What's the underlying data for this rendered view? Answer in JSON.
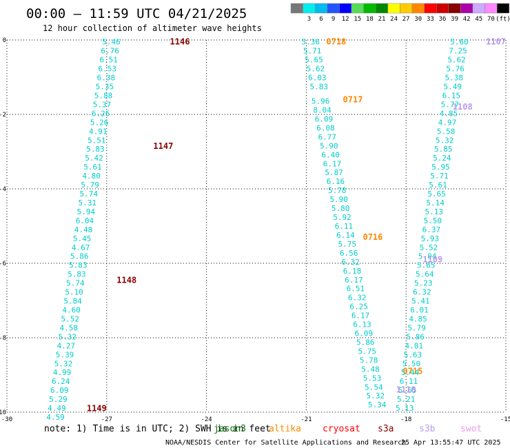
{
  "header": {
    "title": "00:00 – 11:59 UTC 04/21/2025",
    "subtitle": "12 hour collection of altimeter wave heights"
  },
  "colorbar": {
    "unit": "(ft)",
    "bins": [
      {
        "label": "",
        "color": "#777777"
      },
      {
        "label": "3",
        "color": "#00eeee"
      },
      {
        "label": "6",
        "color": "#00bbee"
      },
      {
        "label": "9",
        "color": "#2255ff"
      },
      {
        "label": "12",
        "color": "#0000ff"
      },
      {
        "label": "15",
        "color": "#55dd55"
      },
      {
        "label": "18",
        "color": "#00bb00"
      },
      {
        "label": "21",
        "color": "#008800"
      },
      {
        "label": "24",
        "color": "#ffff00"
      },
      {
        "label": "27",
        "color": "#ffcc00"
      },
      {
        "label": "30",
        "color": "#ff8800"
      },
      {
        "label": "33",
        "color": "#ff0000"
      },
      {
        "label": "36",
        "color": "#cc0000"
      },
      {
        "label": "39",
        "color": "#880000"
      },
      {
        "label": "42",
        "color": "#aa00aa"
      },
      {
        "label": "45",
        "color": "#ccaaff"
      },
      {
        "label": "70",
        "color": "#ff88ff"
      },
      {
        "label": "(ft)",
        "color": "#000000"
      }
    ]
  },
  "legend": {
    "note": "note:  1) Time is in UTC;  2) SWH is in feet",
    "satellites": [
      {
        "name": "jason3",
        "color": "#007700"
      },
      {
        "name": "altika",
        "color": "#ff8800"
      },
      {
        "name": "cryosat",
        "color": "#ff0000"
      },
      {
        "name": "s3a",
        "color": "#880000"
      },
      {
        "name": "s3b",
        "color": "#bb99ee"
      },
      {
        "name": "swot",
        "color": "#ee99ee"
      }
    ]
  },
  "footer": {
    "credit": "NOAA/NESDIS Center for Satellite Applications and Research",
    "generated": "25 Apr 13:55:47 UTC 2025"
  },
  "chart_data": {
    "type": "scatter",
    "xlim": [
      -30,
      -15
    ],
    "ylim": [
      -10,
      0
    ],
    "x_ticks": [
      "-30",
      "-27",
      "-24",
      "-21",
      "-18",
      "-15"
    ],
    "y_ticks": [
      "0",
      "-2",
      "-4",
      "-6",
      "-8",
      "-10"
    ],
    "grid": true,
    "units": "ft",
    "tracks": [
      {
        "satellite": "s3a",
        "color": "#880000",
        "passes": [
          {
            "time": "1146",
            "lon": -24.8,
            "lat": -0.05
          },
          {
            "time": "1147",
            "lon": -25.3,
            "lat": -2.85
          },
          {
            "time": "1148",
            "lon": -26.4,
            "lat": -6.45
          },
          {
            "time": "1149",
            "lon": -27.3,
            "lat": -9.9
          }
        ],
        "points": [
          {
            "lon": -26.86,
            "lat": -0.05,
            "swh": "5.46"
          },
          {
            "lon": -26.9,
            "lat": -0.29,
            "swh": "6.76"
          },
          {
            "lon": -26.94,
            "lat": -0.53,
            "swh": "6.51"
          },
          {
            "lon": -26.98,
            "lat": -0.77,
            "swh": "6.53"
          },
          {
            "lon": -27.02,
            "lat": -1.01,
            "swh": "6.38"
          },
          {
            "lon": -27.06,
            "lat": -1.25,
            "swh": "5.35"
          },
          {
            "lon": -27.1,
            "lat": -1.49,
            "swh": "5.88"
          },
          {
            "lon": -27.14,
            "lat": -1.73,
            "swh": "5.37"
          },
          {
            "lon": -27.18,
            "lat": -1.97,
            "swh": "6.26"
          },
          {
            "lon": -27.22,
            "lat": -2.21,
            "swh": "5.26"
          },
          {
            "lon": -27.26,
            "lat": -2.45,
            "swh": "4.91"
          },
          {
            "lon": -27.3,
            "lat": -2.69,
            "swh": "5.51"
          },
          {
            "lon": -27.34,
            "lat": -2.93,
            "swh": "5.83"
          },
          {
            "lon": -27.38,
            "lat": -3.17,
            "swh": "5.42"
          },
          {
            "lon": -27.42,
            "lat": -3.41,
            "swh": "5.61"
          },
          {
            "lon": -27.46,
            "lat": -3.65,
            "swh": "4.80"
          },
          {
            "lon": -27.5,
            "lat": -3.89,
            "swh": "5.79"
          },
          {
            "lon": -27.54,
            "lat": -4.13,
            "swh": "5.74"
          },
          {
            "lon": -27.58,
            "lat": -4.37,
            "swh": "5.31"
          },
          {
            "lon": -27.62,
            "lat": -4.61,
            "swh": "5.94"
          },
          {
            "lon": -27.66,
            "lat": -4.85,
            "swh": "6.04"
          },
          {
            "lon": -27.7,
            "lat": -5.09,
            "swh": "4.48"
          },
          {
            "lon": -27.74,
            "lat": -5.33,
            "swh": "5.45"
          },
          {
            "lon": -27.78,
            "lat": -5.57,
            "swh": "4.67"
          },
          {
            "lon": -27.82,
            "lat": -5.81,
            "swh": "5.86"
          },
          {
            "lon": -27.86,
            "lat": -6.05,
            "swh": "5.83"
          },
          {
            "lon": -27.9,
            "lat": -6.29,
            "swh": "5.83"
          },
          {
            "lon": -27.94,
            "lat": -6.53,
            "swh": "5.74"
          },
          {
            "lon": -27.98,
            "lat": -6.77,
            "swh": "5.10"
          },
          {
            "lon": -28.02,
            "lat": -7.01,
            "swh": "5.84"
          },
          {
            "lon": -28.06,
            "lat": -7.25,
            "swh": "4.60"
          },
          {
            "lon": -28.1,
            "lat": -7.49,
            "swh": "5.52"
          },
          {
            "lon": -28.14,
            "lat": -7.73,
            "swh": "4.58"
          },
          {
            "lon": -28.18,
            "lat": -7.97,
            "swh": "5.32"
          },
          {
            "lon": -28.22,
            "lat": -8.21,
            "swh": "4.27"
          },
          {
            "lon": -28.26,
            "lat": -8.45,
            "swh": "5.39"
          },
          {
            "lon": -28.3,
            "lat": -8.69,
            "swh": "5.32"
          },
          {
            "lon": -28.34,
            "lat": -8.93,
            "swh": "4.99"
          },
          {
            "lon": -28.38,
            "lat": -9.17,
            "swh": "6.24"
          },
          {
            "lon": -28.42,
            "lat": -9.41,
            "swh": "6.09"
          },
          {
            "lon": -28.46,
            "lat": -9.65,
            "swh": "5.29"
          },
          {
            "lon": -28.5,
            "lat": -9.89,
            "swh": "4.49"
          },
          {
            "lon": -28.54,
            "lat": -10.13,
            "swh": "4.59"
          }
        ]
      },
      {
        "satellite": "altika",
        "color": "#ff8800",
        "passes": [
          {
            "time": "0718",
            "lon": -20.1,
            "lat": -0.05
          },
          {
            "time": "0717",
            "lon": -19.6,
            "lat": -1.6
          },
          {
            "time": "0716",
            "lon": -19.0,
            "lat": -5.3
          },
          {
            "time": "0715",
            "lon": -17.8,
            "lat": -8.9
          }
        ],
        "points": [
          {
            "lon": -20.87,
            "lat": -0.05,
            "swh": "5.36"
          },
          {
            "lon": -20.82,
            "lat": -0.29,
            "swh": "5.71"
          },
          {
            "lon": -20.77,
            "lat": -0.53,
            "swh": "5.65"
          },
          {
            "lon": -20.72,
            "lat": -0.77,
            "swh": "5.62"
          },
          {
            "lon": -20.67,
            "lat": -1.01,
            "swh": "6.03"
          },
          {
            "lon": -20.62,
            "lat": -1.25,
            "swh": "5.83"
          },
          {
            "lon": -20.57,
            "lat": -1.64,
            "swh": "5.96"
          },
          {
            "lon": -20.52,
            "lat": -1.88,
            "swh": "8.04"
          },
          {
            "lon": -20.47,
            "lat": -2.12,
            "swh": "6.09"
          },
          {
            "lon": -20.42,
            "lat": -2.36,
            "swh": "6.08"
          },
          {
            "lon": -20.37,
            "lat": -2.6,
            "swh": "6.77"
          },
          {
            "lon": -20.32,
            "lat": -2.84,
            "swh": "5.90"
          },
          {
            "lon": -20.27,
            "lat": -3.08,
            "swh": "6.40"
          },
          {
            "lon": -20.22,
            "lat": -3.32,
            "swh": "6.17"
          },
          {
            "lon": -20.17,
            "lat": -3.56,
            "swh": "5.87"
          },
          {
            "lon": -20.12,
            "lat": -3.8,
            "swh": "6.16"
          },
          {
            "lon": -20.07,
            "lat": -4.04,
            "swh": "5.78"
          },
          {
            "lon": -20.02,
            "lat": -4.28,
            "swh": "5.90"
          },
          {
            "lon": -19.97,
            "lat": -4.52,
            "swh": "5.80"
          },
          {
            "lon": -19.92,
            "lat": -4.76,
            "swh": "5.92"
          },
          {
            "lon": -19.87,
            "lat": -5.0,
            "swh": "6.11"
          },
          {
            "lon": -19.82,
            "lat": -5.24,
            "swh": "6.14"
          },
          {
            "lon": -19.77,
            "lat": -5.48,
            "swh": "5.75"
          },
          {
            "lon": -19.72,
            "lat": -5.72,
            "swh": "6.56"
          },
          {
            "lon": -19.67,
            "lat": -5.96,
            "swh": "6.32"
          },
          {
            "lon": -19.62,
            "lat": -6.2,
            "swh": "6.18"
          },
          {
            "lon": -19.57,
            "lat": -6.44,
            "swh": "6.17"
          },
          {
            "lon": -19.52,
            "lat": -6.68,
            "swh": "6.51"
          },
          {
            "lon": -19.47,
            "lat": -6.92,
            "swh": "6.32"
          },
          {
            "lon": -19.42,
            "lat": -7.16,
            "swh": "6.25"
          },
          {
            "lon": -19.37,
            "lat": -7.4,
            "swh": "6.17"
          },
          {
            "lon": -19.32,
            "lat": -7.64,
            "swh": "6.13"
          },
          {
            "lon": -19.27,
            "lat": -7.88,
            "swh": "6.09"
          },
          {
            "lon": -19.22,
            "lat": -8.12,
            "swh": "5.86"
          },
          {
            "lon": -19.17,
            "lat": -8.36,
            "swh": "5.75"
          },
          {
            "lon": -19.12,
            "lat": -8.6,
            "swh": "5.78"
          },
          {
            "lon": -19.07,
            "lat": -8.84,
            "swh": "5.48"
          },
          {
            "lon": -19.02,
            "lat": -9.08,
            "swh": "5.53"
          },
          {
            "lon": -18.97,
            "lat": -9.32,
            "swh": "5.54"
          },
          {
            "lon": -18.92,
            "lat": -9.56,
            "swh": "5.32"
          },
          {
            "lon": -18.87,
            "lat": -9.8,
            "swh": "5.34"
          }
        ]
      },
      {
        "satellite": "s3b",
        "color": "#bb99ee",
        "passes": [
          {
            "time": "1107",
            "lon": -15.3,
            "lat": -0.05
          },
          {
            "time": "1108",
            "lon": -16.3,
            "lat": -1.8
          },
          {
            "time": "1109",
            "lon": -17.2,
            "lat": -5.9
          },
          {
            "time": "1110",
            "lon": -18.0,
            "lat": -9.4
          }
        ],
        "points": [
          {
            "lon": -16.4,
            "lat": -0.05,
            "swh": "5.60"
          },
          {
            "lon": -16.44,
            "lat": -0.29,
            "swh": "7.25"
          },
          {
            "lon": -16.48,
            "lat": -0.53,
            "swh": "5.62"
          },
          {
            "lon": -16.52,
            "lat": -0.77,
            "swh": "5.76"
          },
          {
            "lon": -16.56,
            "lat": -1.01,
            "swh": "5.38"
          },
          {
            "lon": -16.6,
            "lat": -1.25,
            "swh": "5.49"
          },
          {
            "lon": -16.64,
            "lat": -1.49,
            "swh": "6.15"
          },
          {
            "lon": -16.68,
            "lat": -1.73,
            "swh": "5.77"
          },
          {
            "lon": -16.72,
            "lat": -1.97,
            "swh": "4.85"
          },
          {
            "lon": -16.76,
            "lat": -2.21,
            "swh": "4.97"
          },
          {
            "lon": -16.8,
            "lat": -2.45,
            "swh": "5.58"
          },
          {
            "lon": -16.84,
            "lat": -2.69,
            "swh": "5.32"
          },
          {
            "lon": -16.88,
            "lat": -2.93,
            "swh": "5.85"
          },
          {
            "lon": -16.92,
            "lat": -3.17,
            "swh": "5.24"
          },
          {
            "lon": -16.96,
            "lat": -3.41,
            "swh": "5.95"
          },
          {
            "lon": -17.0,
            "lat": -3.65,
            "swh": "5.71"
          },
          {
            "lon": -17.04,
            "lat": -3.89,
            "swh": "5.61"
          },
          {
            "lon": -17.08,
            "lat": -4.13,
            "swh": "5.65"
          },
          {
            "lon": -17.12,
            "lat": -4.37,
            "swh": "5.14"
          },
          {
            "lon": -17.16,
            "lat": -4.61,
            "swh": "5.13"
          },
          {
            "lon": -17.2,
            "lat": -4.85,
            "swh": "5.50"
          },
          {
            "lon": -17.24,
            "lat": -5.09,
            "swh": "6.37"
          },
          {
            "lon": -17.28,
            "lat": -5.33,
            "swh": "5.93"
          },
          {
            "lon": -17.32,
            "lat": -5.57,
            "swh": "5.52"
          },
          {
            "lon": -17.36,
            "lat": -5.81,
            "swh": "5.04"
          },
          {
            "lon": -17.4,
            "lat": -6.05,
            "swh": "5.65"
          },
          {
            "lon": -17.44,
            "lat": -6.29,
            "swh": "5.64"
          },
          {
            "lon": -17.48,
            "lat": -6.53,
            "swh": "5.23"
          },
          {
            "lon": -17.52,
            "lat": -6.77,
            "swh": "6.32"
          },
          {
            "lon": -17.56,
            "lat": -7.01,
            "swh": "5.41"
          },
          {
            "lon": -17.6,
            "lat": -7.25,
            "swh": "6.01"
          },
          {
            "lon": -17.64,
            "lat": -7.49,
            "swh": "4.85"
          },
          {
            "lon": -17.68,
            "lat": -7.73,
            "swh": "5.79"
          },
          {
            "lon": -17.72,
            "lat": -7.97,
            "swh": "5.86"
          },
          {
            "lon": -17.76,
            "lat": -8.21,
            "swh": "4.81"
          },
          {
            "lon": -17.8,
            "lat": -8.45,
            "swh": "5.63"
          },
          {
            "lon": -17.84,
            "lat": -8.69,
            "swh": "5.50"
          },
          {
            "lon": -17.88,
            "lat": -8.93,
            "swh": "5.44"
          },
          {
            "lon": -17.92,
            "lat": -9.17,
            "swh": "6.11"
          },
          {
            "lon": -17.96,
            "lat": -9.41,
            "swh": "5.65"
          },
          {
            "lon": -18.0,
            "lat": -9.65,
            "swh": "5.21"
          },
          {
            "lon": -18.04,
            "lat": -9.89,
            "swh": "5.13"
          }
        ]
      }
    ]
  }
}
